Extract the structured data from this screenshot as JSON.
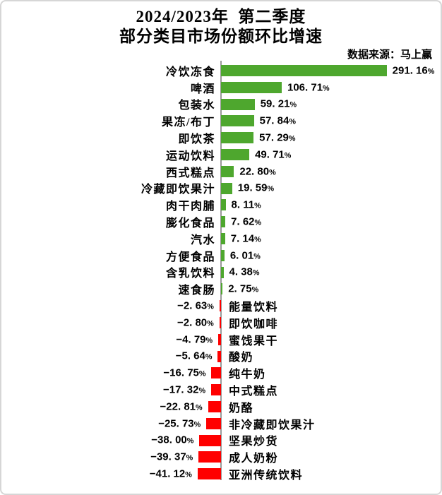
{
  "header": {
    "title_line1": "2024/2023年  第二季度",
    "title_line2": "部分类目市场份额环比增速",
    "source": "数据来源：马上赢"
  },
  "chart_data": {
    "type": "bar",
    "orientation": "horizontal",
    "title": "2024/2023年 第二季度 部分类目市场份额环比增速",
    "source_note": "数据来源：马上赢",
    "unit": "%",
    "baseline": 0,
    "grid": false,
    "legend": false,
    "value_range_implied": [
      -45,
      300
    ],
    "positive_color": "#4ea72e",
    "negative_color": "#ff0000",
    "axis_color": "#9a9a9a",
    "categories": [
      "冷饮冻食",
      "啤酒",
      "包装水",
      "果冻/布丁",
      "即饮茶",
      "运动饮料",
      "西式糕点",
      "冷藏即饮果汁",
      "肉干肉脯",
      "膨化食品",
      "汽水",
      "方便食品",
      "含乳饮料",
      "速食肠",
      "能量饮料",
      "即饮咖啡",
      "蜜饯果干",
      "酸奶",
      "纯牛奶",
      "中式糕点",
      "奶酪",
      "非冷藏即饮果汁",
      "坚果炒货",
      "成人奶粉",
      "亚洲传统饮料"
    ],
    "values": [
      291.16,
      106.71,
      59.21,
      57.84,
      57.29,
      49.71,
      22.8,
      19.59,
      8.11,
      7.62,
      7.14,
      6.01,
      4.38,
      2.75,
      -2.63,
      -2.8,
      -4.79,
      -5.64,
      -16.75,
      -17.32,
      -22.81,
      -25.73,
      -38.0,
      -39.37,
      -41.12
    ],
    "labels": [
      "291. 16%",
      "106. 71%",
      "59. 21%",
      "57. 84%",
      "57. 29%",
      "49. 71%",
      "22. 80%",
      "19. 59%",
      "8. 11%",
      "7. 62%",
      "7. 14%",
      "6. 01%",
      "4. 38%",
      "2. 75%",
      "−2. 63%",
      "−2. 80%",
      "−4. 79%",
      "−5. 64%",
      "−16. 75%",
      "−17. 32%",
      "−22. 81%",
      "−25. 73%",
      "−38. 00%",
      "−39. 37%",
      "−41. 12%"
    ]
  }
}
